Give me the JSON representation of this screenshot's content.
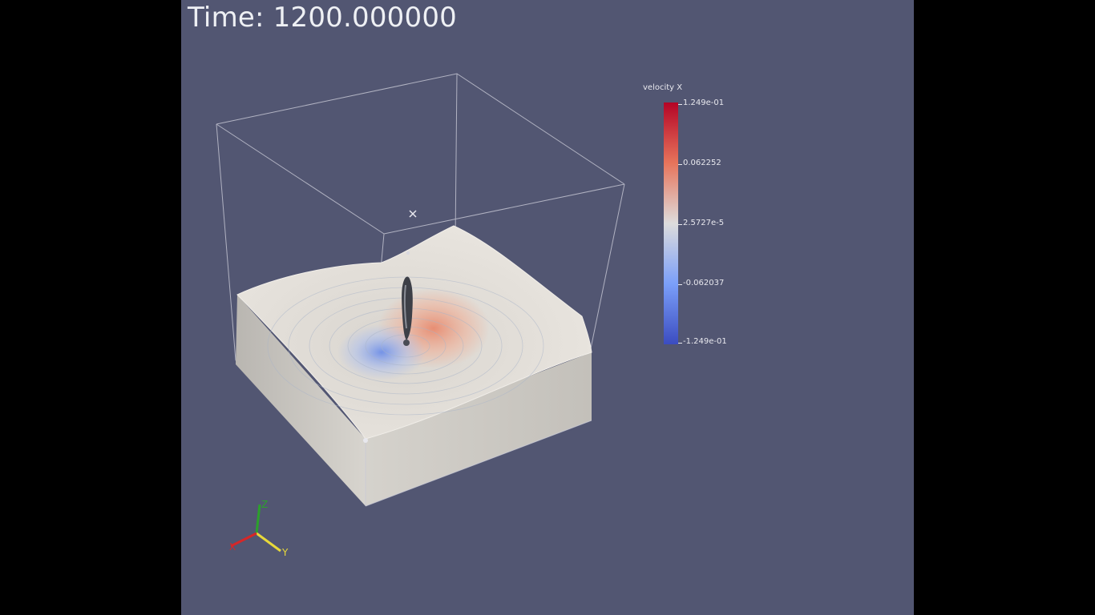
{
  "time_label": "Time: 1200.000000",
  "colorbar": {
    "title": "velocity X",
    "labels": [
      "1.249e-01",
      "0.062252",
      "2.5727e-5",
      "-0.062037",
      "-1.249e-01"
    ],
    "gradient_colors": [
      "#b40426",
      "#e7745b",
      "#dddcdc",
      "#7b9ff9",
      "#3b4cc0"
    ]
  },
  "axes": {
    "x_label": "X",
    "y_label": "Y",
    "z_label": "Z",
    "x_color": "#d62728",
    "y_color": "#e8d93a",
    "z_color": "#2ca02c"
  },
  "colors": {
    "background": "#525672",
    "letterbox": "#000000",
    "outline": "#c9cad6",
    "surface": "#e4e0da",
    "side_wall": "#cfccc6"
  }
}
